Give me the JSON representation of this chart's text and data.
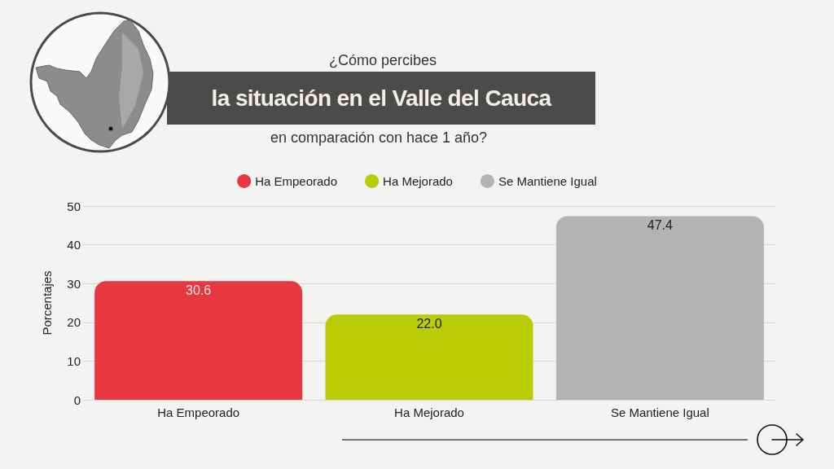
{
  "chart_data": {
    "type": "bar",
    "title": "¿Cómo percibes\nla situación en el Valle del Cauca\nen comparación con hace 1 año?",
    "ylabel": "Porcentajes",
    "categories": [
      "Ha Empeorado",
      "Ha Mejorado",
      "Se Mantiene Igual"
    ],
    "series": [
      {
        "name": "Ha Empeorado",
        "color": "#e8383f",
        "values": [
          30.6,
          null,
          null
        ],
        "value_labels": [
          "30.6",
          null,
          null
        ]
      },
      {
        "name": "Ha Mejorado",
        "color": "#b9cc05",
        "values": [
          null,
          22.0,
          null
        ],
        "value_labels": [
          null,
          "22.0",
          null
        ]
      },
      {
        "name": "Se Mantiene Igual",
        "color": "#b3b3b3",
        "values": [
          null,
          null,
          47.4
        ],
        "value_labels": [
          null,
          null,
          "47.4"
        ]
      }
    ],
    "stacked": true,
    "ylim": [
      0,
      50
    ],
    "yticks": [
      0,
      10,
      20,
      30,
      40,
      50
    ],
    "grid": "y",
    "legend": "top"
  }
}
